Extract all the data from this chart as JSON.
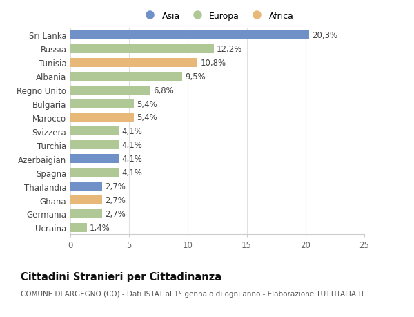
{
  "categories": [
    "Sri Lanka",
    "Russia",
    "Tunisia",
    "Albania",
    "Regno Unito",
    "Bulgaria",
    "Marocco",
    "Svizzera",
    "Turchia",
    "Azerbaigian",
    "Spagna",
    "Thailandia",
    "Ghana",
    "Germania",
    "Ucraina"
  ],
  "values": [
    20.3,
    12.2,
    10.8,
    9.5,
    6.8,
    5.4,
    5.4,
    4.1,
    4.1,
    4.1,
    4.1,
    2.7,
    2.7,
    2.7,
    1.4
  ],
  "labels": [
    "20,3%",
    "12,2%",
    "10,8%",
    "9,5%",
    "6,8%",
    "5,4%",
    "5,4%",
    "4,1%",
    "4,1%",
    "4,1%",
    "4,1%",
    "2,7%",
    "2,7%",
    "2,7%",
    "1,4%"
  ],
  "continents": [
    "Asia",
    "Europa",
    "Africa",
    "Europa",
    "Europa",
    "Europa",
    "Africa",
    "Europa",
    "Europa",
    "Asia",
    "Europa",
    "Asia",
    "Africa",
    "Europa",
    "Europa"
  ],
  "colors": {
    "Asia": "#7090c8",
    "Europa": "#b0c896",
    "Africa": "#e8b878"
  },
  "legend_order": [
    "Asia",
    "Europa",
    "Africa"
  ],
  "title": "Cittadini Stranieri per Cittadinanza",
  "subtitle": "COMUNE DI ARGEGNO (CO) - Dati ISTAT al 1° gennaio di ogni anno - Elaborazione TUTTITALIA.IT",
  "xlim": [
    0,
    25
  ],
  "xticks": [
    0,
    5,
    10,
    15,
    20,
    25
  ],
  "background_color": "#ffffff",
  "bar_height": 0.65,
  "label_fontsize": 8.5,
  "tick_fontsize": 8.5,
  "title_fontsize": 10.5,
  "subtitle_fontsize": 7.5
}
